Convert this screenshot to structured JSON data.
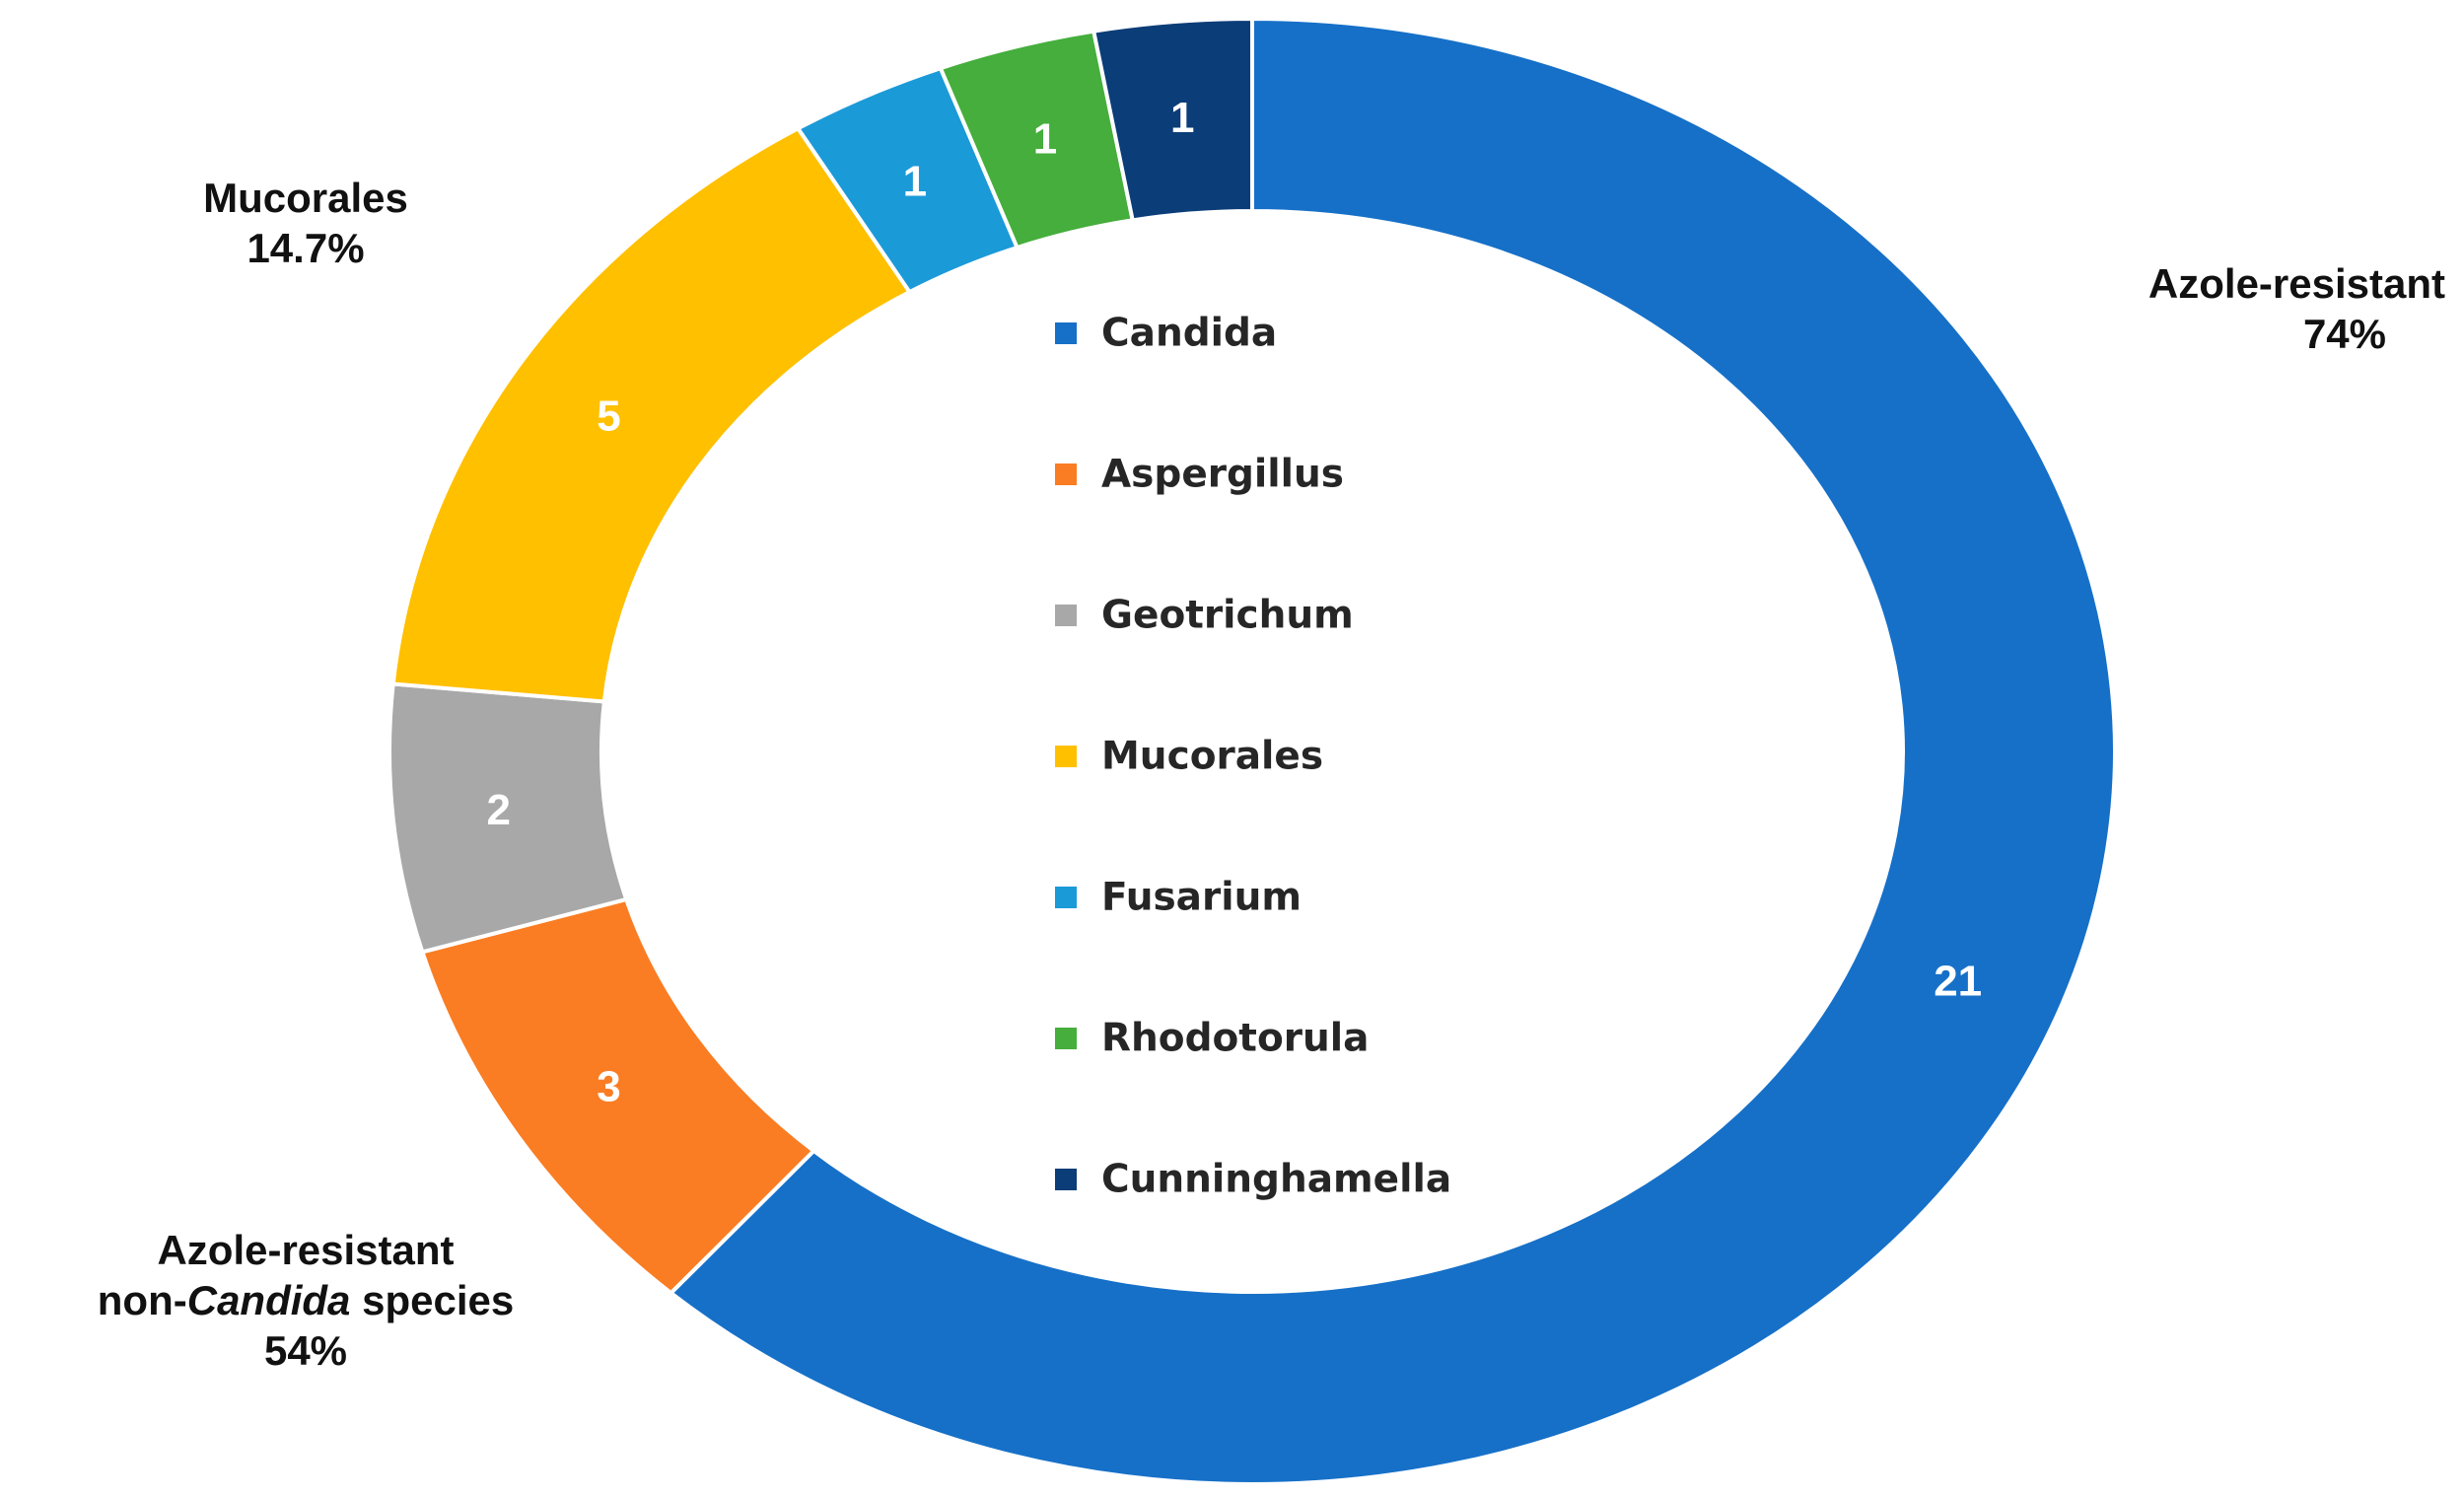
{
  "chart_data": {
    "type": "pie",
    "style": "donut",
    "start_angle_deg": 0,
    "direction": "clockwise",
    "slices": [
      {
        "label": "Candida",
        "value": 21,
        "color": "#1670C8"
      },
      {
        "label": "Aspergillus",
        "value": 3,
        "color": "#FA7D23"
      },
      {
        "label": "Geotrichum",
        "value": 2,
        "color": "#A8A8A8"
      },
      {
        "label": "Mucorales",
        "value": 5,
        "color": "#FFC000"
      },
      {
        "label": "Fusarium",
        "value": 1,
        "color": "#1B9AD8"
      },
      {
        "label": "Rhodotorula",
        "value": 1,
        "color": "#45AE3C"
      },
      {
        "label": "Cunninghamella",
        "value": 1,
        "color": "#0B3D78"
      }
    ],
    "legend": {
      "placement": "center"
    },
    "annotations": [
      {
        "id": "mucorales",
        "title": "Mucorales",
        "value": "14.7%"
      },
      {
        "id": "candida",
        "title": "Azole-resistant",
        "value": "74%"
      },
      {
        "id": "noncandida",
        "title_prefix": "Azole-resistant",
        "title_line2_pre": "non-",
        "title_line2_italic": "Candida",
        "title_line2_post": " species",
        "value": "54%"
      }
    ]
  }
}
